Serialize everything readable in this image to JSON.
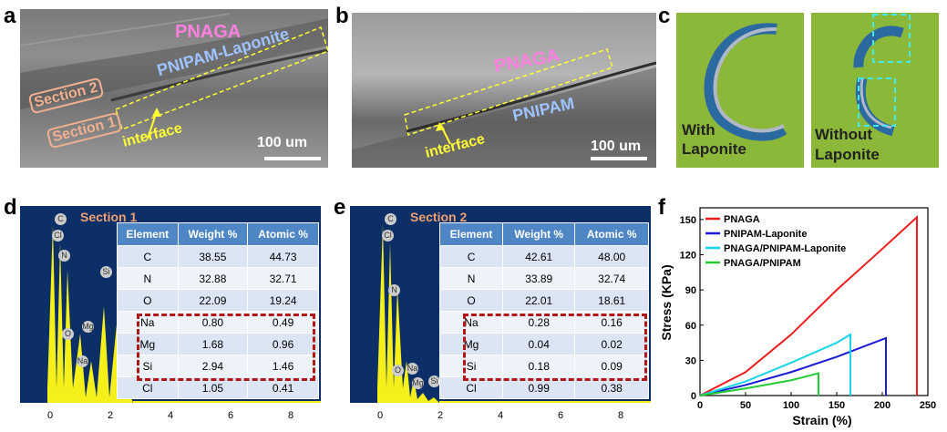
{
  "panels": {
    "a": "a",
    "b": "b",
    "c": "c",
    "d": "d",
    "e": "e",
    "f": "f"
  },
  "panel_a": {
    "pnaga": "PNAGA",
    "pnipam": "PNIPAM-Laponite",
    "section2": "Section 2",
    "section1": "Section 1",
    "interface": "interface",
    "scale": "100 um"
  },
  "panel_b": {
    "pnaga": "PNAGA",
    "pnipam": "PNIPAM",
    "interface": "interface",
    "scale": "100 um"
  },
  "panel_c": {
    "left_label_1": "With",
    "left_label_2": "Laponite",
    "right_label_1": "Without",
    "right_label_2": "Laponite"
  },
  "panel_d": {
    "title": "Section 1",
    "peaks": [
      "C",
      "Cl",
      "N",
      "O",
      "Na",
      "Mg",
      "Si"
    ],
    "xticks": [
      "0",
      "2",
      "4",
      "6",
      "8"
    ],
    "headers": [
      "Element",
      "Weight %",
      "Atomic %"
    ],
    "rows": [
      [
        "C",
        "38.55",
        "44.73"
      ],
      [
        "N",
        "32.88",
        "32.71"
      ],
      [
        "O",
        "22.09",
        "19.24"
      ],
      [
        "Na",
        "0.80",
        "0.49"
      ],
      [
        "Mg",
        "1.68",
        "0.96"
      ],
      [
        "Si",
        "2.94",
        "1.46"
      ],
      [
        "Cl",
        "1.05",
        "0.41"
      ]
    ]
  },
  "panel_e": {
    "title": "Section 2",
    "peaks": [
      "C",
      "Cl",
      "N",
      "O",
      "Na",
      "Mg",
      "Si"
    ],
    "xticks": [
      "0",
      "2",
      "4",
      "6",
      "8"
    ],
    "headers": [
      "Element",
      "Weight %",
      "Atomic %"
    ],
    "rows": [
      [
        "C",
        "42.61",
        "48.00"
      ],
      [
        "N",
        "33.89",
        "32.74"
      ],
      [
        "O",
        "22.01",
        "18.61"
      ],
      [
        "Na",
        "0.28",
        "0.16"
      ],
      [
        "Mg",
        "0.04",
        "0.02"
      ],
      [
        "Si",
        "0.18",
        "0.09"
      ],
      [
        "Cl",
        "0.99",
        "0.38"
      ]
    ]
  },
  "chart_data": {
    "type": "line",
    "title": "",
    "xlabel": "Strain (%)",
    "ylabel": "Stress (KPa)",
    "xlim": [
      0,
      250
    ],
    "ylim": [
      0,
      160
    ],
    "xticks": [
      "0",
      "50",
      "100",
      "150",
      "200",
      "250"
    ],
    "yticks": [
      "0",
      "30",
      "60",
      "90",
      "120",
      "150"
    ],
    "legend_position": "top-left",
    "series": [
      {
        "name": "PNAGA",
        "color": "#ee1c1c",
        "x": [
          0,
          50,
          100,
          150,
          200,
          238,
          238
        ],
        "y": [
          0,
          20,
          52,
          90,
          125,
          152,
          0
        ]
      },
      {
        "name": "PNIPAM-Laponite",
        "color": "#1a1ad6",
        "x": [
          0,
          50,
          100,
          150,
          204,
          204
        ],
        "y": [
          0,
          9,
          20,
          33,
          49,
          0
        ]
      },
      {
        "name": "PNAGA/PNIPAM-Laponite",
        "color": "#16d4e6",
        "x": [
          0,
          50,
          100,
          150,
          165,
          165
        ],
        "y": [
          0,
          12,
          28,
          45,
          52,
          0
        ]
      },
      {
        "name": "PNAGA/PNIPAM",
        "color": "#22cc33",
        "x": [
          0,
          50,
          100,
          130,
          130
        ],
        "y": [
          0,
          6,
          13,
          19,
          0
        ]
      }
    ]
  }
}
